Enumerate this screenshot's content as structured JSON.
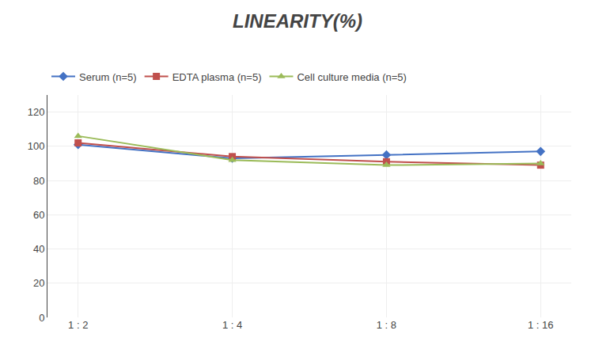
{
  "chart_data": {
    "type": "line",
    "title": "LINEARITY(%)",
    "categories": [
      "1 : 2",
      "1 : 4",
      "1 : 8",
      "1 : 16"
    ],
    "series": [
      {
        "name": "Serum (n=5)",
        "color": "#4472C4",
        "marker": "diamond",
        "values": [
          101,
          93,
          95,
          97
        ]
      },
      {
        "name": "EDTA plasma (n=5)",
        "color": "#C0504D",
        "marker": "square",
        "values": [
          102,
          94,
          91,
          89
        ]
      },
      {
        "name": "Cell culture media (n=5)",
        "color": "#9BBB59",
        "marker": "triangle-up",
        "values": [
          106,
          92,
          89,
          90
        ]
      }
    ],
    "ylim": [
      0,
      130
    ],
    "yticks": [
      0,
      20,
      40,
      60,
      80,
      100,
      120
    ],
    "grid": true,
    "legend": "top"
  }
}
